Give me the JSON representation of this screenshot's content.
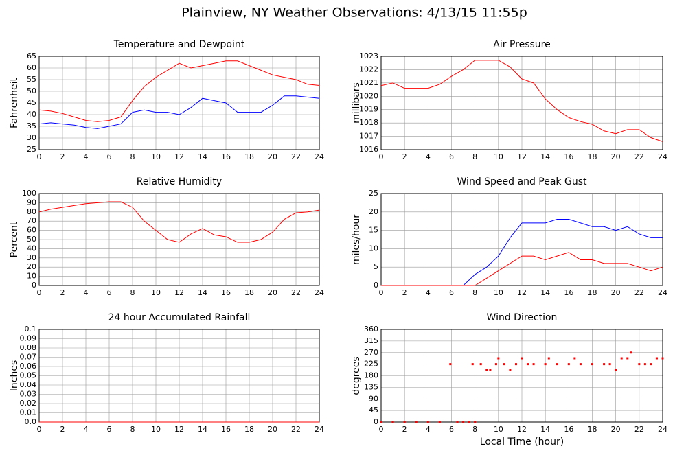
{
  "title": "Plainview, NY Weather Observations: 4/13/15 11:55p",
  "chart_data": [
    {
      "type": "line",
      "title": "Temperature and Dewpoint",
      "ylabel": "Fahrenheit",
      "x": [
        0,
        1,
        2,
        3,
        4,
        5,
        6,
        7,
        8,
        9,
        10,
        11,
        12,
        13,
        14,
        15,
        16,
        17,
        18,
        19,
        20,
        21,
        22,
        23,
        24
      ],
      "series": [
        {
          "color": "#ff0000",
          "values": [
            42,
            41.5,
            40.5,
            39,
            37.5,
            37,
            37.5,
            39,
            46,
            52,
            56,
            59,
            62,
            60,
            61,
            62,
            63,
            63,
            61,
            59,
            57,
            56,
            55,
            53,
            52.5
          ]
        },
        {
          "color": "#0000ff",
          "values": [
            36,
            36.5,
            36,
            35.5,
            34.5,
            34,
            35,
            36,
            41,
            42,
            41,
            41,
            40,
            43,
            47,
            46,
            45,
            41,
            41,
            41,
            44,
            48,
            48,
            47.5,
            47
          ]
        }
      ],
      "xlim": [
        0,
        24
      ],
      "ylim": [
        25,
        65
      ],
      "xticks": [
        0,
        2,
        4,
        6,
        8,
        10,
        12,
        14,
        16,
        18,
        20,
        22,
        24
      ],
      "yticks": [
        25,
        30,
        35,
        40,
        45,
        50,
        55,
        60,
        65
      ]
    },
    {
      "type": "line",
      "title": "Air Pressure",
      "ylabel": "millibars",
      "x": [
        0,
        1,
        2,
        3,
        4,
        5,
        6,
        7,
        8,
        9,
        10,
        11,
        12,
        13,
        14,
        15,
        16,
        17,
        18,
        19,
        20,
        21,
        22,
        23,
        24
      ],
      "series": [
        {
          "color": "#ff0000",
          "values": [
            1020.8,
            1021.0,
            1020.6,
            1020.6,
            1020.6,
            1020.9,
            1021.5,
            1022.0,
            1022.7,
            1022.7,
            1022.7,
            1022.2,
            1021.3,
            1021.0,
            1019.8,
            1019.0,
            1018.4,
            1018.1,
            1017.9,
            1017.4,
            1017.2,
            1017.5,
            1017.5,
            1016.9,
            1016.6
          ]
        }
      ],
      "xlim": [
        0,
        24
      ],
      "ylim": [
        1016,
        1023
      ],
      "xticks": [
        0,
        2,
        4,
        6,
        8,
        10,
        12,
        14,
        16,
        18,
        20,
        22,
        24
      ],
      "yticks": [
        1016,
        1017,
        1018,
        1019,
        1020,
        1021,
        1022,
        1023
      ]
    },
    {
      "type": "line",
      "title": "Relative Humidity",
      "ylabel": "Percent",
      "x": [
        0,
        1,
        2,
        3,
        4,
        5,
        6,
        7,
        8,
        9,
        10,
        11,
        12,
        13,
        14,
        15,
        16,
        17,
        18,
        19,
        20,
        21,
        22,
        23,
        24
      ],
      "series": [
        {
          "color": "#ff0000",
          "values": [
            80,
            83,
            85,
            87,
            89,
            90,
            91,
            91,
            85,
            70,
            60,
            50,
            47,
            56,
            62,
            55,
            53,
            47,
            47,
            50,
            58,
            72,
            79,
            80,
            82
          ]
        }
      ],
      "xlim": [
        0,
        24
      ],
      "ylim": [
        0,
        100
      ],
      "xticks": [
        0,
        2,
        4,
        6,
        8,
        10,
        12,
        14,
        16,
        18,
        20,
        22,
        24
      ],
      "yticks": [
        0,
        10,
        20,
        30,
        40,
        50,
        60,
        70,
        80,
        90,
        100
      ]
    },
    {
      "type": "line",
      "title": "Wind Speed and Peak Gust",
      "ylabel": "miles/hour",
      "x": [
        0,
        1,
        2,
        3,
        4,
        5,
        6,
        7,
        8,
        9,
        10,
        11,
        12,
        13,
        14,
        15,
        16,
        17,
        18,
        19,
        20,
        21,
        22,
        23,
        24
      ],
      "series": [
        {
          "color": "#0000ff",
          "values": [
            0,
            0,
            0,
            0,
            0,
            0,
            0,
            0,
            3,
            5,
            8,
            13,
            17,
            17,
            17,
            18,
            18,
            17,
            16,
            16,
            15,
            16,
            14,
            13,
            13
          ]
        },
        {
          "color": "#ff0000",
          "values": [
            0,
            0,
            0,
            0,
            0,
            0,
            0,
            0,
            0,
            2,
            4,
            6,
            8,
            8,
            7,
            8,
            9,
            7,
            7,
            6,
            6,
            6,
            5,
            4,
            5
          ]
        }
      ],
      "xlim": [
        0,
        24
      ],
      "ylim": [
        0,
        25
      ],
      "xticks": [
        0,
        2,
        4,
        6,
        8,
        10,
        12,
        14,
        16,
        18,
        20,
        22,
        24
      ],
      "yticks": [
        0,
        5,
        10,
        15,
        20,
        25
      ]
    },
    {
      "type": "line",
      "title": "24 hour Accumulated Rainfall",
      "ylabel": "Inches",
      "x": [
        0,
        24
      ],
      "series": [
        {
          "color": "#ff0000",
          "values": [
            0,
            0
          ]
        }
      ],
      "xlim": [
        0,
        24
      ],
      "ylim": [
        0,
        0.1
      ],
      "xticks": [
        0,
        2,
        4,
        6,
        8,
        10,
        12,
        14,
        16,
        18,
        20,
        22,
        24
      ],
      "yticks": [
        {
          "value": 0,
          "label": "0.0"
        },
        0.01,
        0.02,
        0.03,
        0.04,
        0.05,
        0.06,
        0.07,
        0.08,
        0.09,
        0.1
      ]
    },
    {
      "type": "scatter",
      "title": "Wind Direction",
      "ylabel": "degrees",
      "xlabel": "Local Time (hour)",
      "x": [
        0,
        1,
        2,
        3,
        4,
        5,
        5.9,
        6.5,
        7,
        7.5,
        7.8,
        8,
        8.5,
        9,
        9.3,
        9.8,
        10,
        10.5,
        11,
        11.5,
        12,
        12.5,
        13,
        14,
        14.3,
        15,
        16,
        16.5,
        17,
        18,
        19,
        19.5,
        20,
        20.5,
        21,
        21.3,
        22,
        22.5,
        23,
        23.5,
        24
      ],
      "series": [
        {
          "color": "#ff0000",
          "values": [
            0,
            0,
            0,
            0,
            0,
            0,
            225,
            0,
            0,
            0,
            225,
            0,
            225,
            203,
            203,
            225,
            248,
            225,
            203,
            225,
            248,
            225,
            225,
            225,
            248,
            225,
            225,
            248,
            225,
            225,
            225,
            225,
            203,
            248,
            248,
            270,
            225,
            225,
            225,
            248,
            248
          ]
        }
      ],
      "xlim": [
        0,
        24
      ],
      "ylim": [
        0,
        360
      ],
      "xticks": [
        0,
        2,
        4,
        6,
        8,
        10,
        12,
        14,
        16,
        18,
        20,
        22,
        24
      ],
      "yticks": [
        0,
        45,
        90,
        135,
        180,
        225,
        270,
        315,
        360
      ]
    }
  ]
}
